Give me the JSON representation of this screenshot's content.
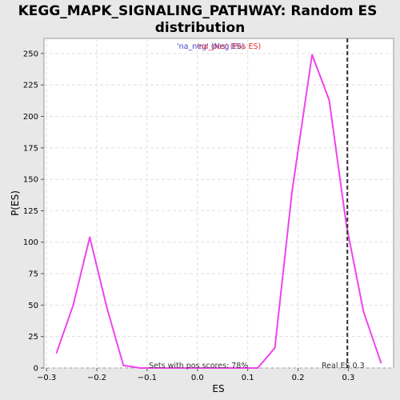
{
  "chart_data": {
    "type": "line",
    "title_lines": [
      "KEGG_MAPK_SIGNALING_PATHWAY: Random ES",
      "distribution"
    ],
    "xlabel": "ES",
    "ylabel": "P(ES)",
    "xlim": [
      -0.305,
      0.39
    ],
    "ylim": [
      0,
      262
    ],
    "xticks": [
      -0.3,
      -0.2,
      -0.1,
      0.0,
      0.1,
      0.2,
      0.3
    ],
    "xtick_labels": [
      "−0.3",
      "−0.2",
      "−0.1",
      "0.0",
      "0.1",
      "0.2",
      "0.3"
    ],
    "yticks": [
      0,
      25,
      50,
      75,
      100,
      125,
      150,
      175,
      200,
      225,
      250
    ],
    "ytick_labels": [
      "0",
      "25",
      "50",
      "75",
      "100",
      "125",
      "150",
      "175",
      "200",
      "225",
      "250"
    ],
    "grid": true,
    "series": [
      {
        "color": "#ee44ee",
        "x": [
          -0.28,
          -0.247,
          -0.214,
          -0.18,
          -0.147,
          -0.113,
          -0.08,
          -0.047,
          -0.013,
          0.02,
          0.054,
          0.087,
          0.12,
          0.154,
          0.188,
          0.228,
          0.262,
          0.296,
          0.33,
          0.365
        ],
        "y": [
          12,
          50,
          104,
          48,
          2,
          0,
          0,
          0,
          0,
          0,
          0,
          0,
          0,
          16,
          140,
          249,
          213,
          114,
          45,
          4
        ]
      }
    ],
    "real_es": 0.298,
    "annotations": {
      "neg_label": "'na_neg' (Neg ES)",
      "pos_label": "'na_pos' (Pos ES)",
      "pos_scores": "Sets with pos scores: 78%",
      "real_es_label": "Real ES 0.3"
    },
    "colors": {
      "neg": "#4444cc",
      "pos": "#dd3333",
      "line": "#ee44ee",
      "real_es": "#333333"
    }
  }
}
